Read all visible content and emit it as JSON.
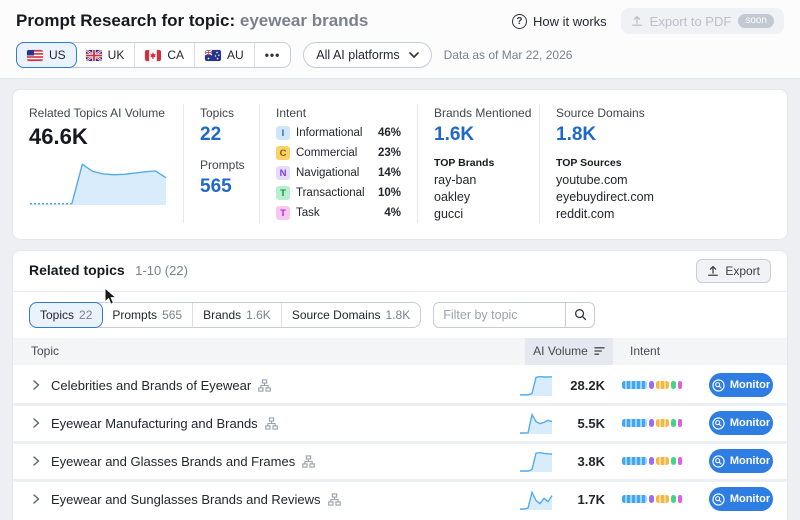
{
  "colors": {
    "accent_blue": "#1f68c9",
    "monitor_blue": "#2e7de2",
    "spark_line": "#55aced",
    "spark_fill": "#d9ecfb",
    "selected_tab_border": "#3179d8",
    "selected_tab_bg": "#eaf3fd",
    "intent_bg": {
      "informational": "#cfe6fb",
      "commercial": "#fbd266",
      "navigational": "#e6dcfa",
      "transactional": "#b8efd0",
      "task": "#f7c8f0"
    },
    "intent_fg": {
      "informational": "#2b6cb8",
      "commercial": "#8a5b09",
      "navigational": "#7c3aed",
      "transactional": "#15923f",
      "task": "#c026d3"
    },
    "bar_segments": {
      "blue": "#41a6f5",
      "purple": "#9b6bf2",
      "amber": "#f5b73e",
      "green": "#3fd68a",
      "magenta": "#e05ce0"
    }
  },
  "header": {
    "title_prefix": "Prompt Research for topic: ",
    "title_topic": "eyewear brands",
    "how_it_works_label": "How it works",
    "export_pdf_label": "Export to PDF",
    "soon_badge": "soon",
    "countries": [
      {
        "code": "US",
        "selected": true
      },
      {
        "code": "UK",
        "selected": false
      },
      {
        "code": "CA",
        "selected": false
      },
      {
        "code": "AU",
        "selected": false
      }
    ],
    "more_label": "•••",
    "platform_selector_label": "All AI platforms",
    "data_as_of": "Data as of Mar 22, 2026"
  },
  "overview": {
    "ai_volume_label": "Related Topics AI Volume",
    "ai_volume_value": "46.6K",
    "trend": [
      0.03,
      0.03,
      0.03,
      0.03,
      0.03,
      0.97,
      0.8,
      0.74,
      0.72,
      0.73,
      0.76,
      0.79,
      0.81,
      0.65
    ],
    "topics_label": "Topics",
    "topics_value": "22",
    "prompts_label": "Prompts",
    "prompts_value": "565",
    "intent_label": "Intent",
    "intents": [
      {
        "letter": "I",
        "name": "Informational",
        "pct": "46%"
      },
      {
        "letter": "C",
        "name": "Commercial",
        "pct": "23%"
      },
      {
        "letter": "N",
        "name": "Navigational",
        "pct": "14%"
      },
      {
        "letter": "T",
        "name": "Transactional",
        "pct": "10%"
      },
      {
        "letter": "T",
        "name": "Task",
        "pct": "4%"
      }
    ],
    "brands_label": "Brands Mentioned",
    "brands_value": "1.6K",
    "top_brands_label": "TOP Brands",
    "top_brands": {
      "0": "ray-ban",
      "1": "oakley",
      "2": "gucci"
    },
    "sources_label": "Source Domains",
    "sources_value": "1.8K",
    "top_sources_label": "TOP Sources",
    "top_sources": {
      "0": "youtube.com",
      "1": "eyebuydirect.com",
      "2": "reddit.com"
    }
  },
  "related": {
    "title": "Related topics",
    "range": "1-10 (22)",
    "export_label": "Export",
    "tabs": [
      {
        "label": "Topics",
        "value": "22",
        "active": true
      },
      {
        "label": "Prompts",
        "value": "565",
        "active": false
      },
      {
        "label": "Brands",
        "value": "1.6K",
        "active": false
      },
      {
        "label": "Source Domains",
        "value": "1.8K",
        "active": false
      }
    ],
    "filter_placeholder": "Filter by topic",
    "columns": {
      "topic": "Topic",
      "ai_volume": "AI Volume",
      "intent": "Intent"
    },
    "monitor_label": "Monitor",
    "rows": [
      {
        "topic": "Celebrities and Brands of Eyewear",
        "ai_volume": "28.2K",
        "trend": [
          0.06,
          0.06,
          0.06,
          0.12,
          0.93,
          0.97,
          0.95,
          0.95,
          0.96
        ]
      },
      {
        "topic": "Eyewear Manufacturing and Brands",
        "ai_volume": "5.5K",
        "trend": [
          0.05,
          0.05,
          0.06,
          0.97,
          0.62,
          0.52,
          0.58,
          0.68,
          0.62
        ]
      },
      {
        "topic": "Eyewear and Glasses Brands and Frames",
        "ai_volume": "3.8K",
        "trend": [
          0.05,
          0.05,
          0.05,
          0.12,
          0.94,
          0.97,
          0.93,
          0.91,
          0.9
        ]
      },
      {
        "topic": "Eyewear and Sunglasses Brands and Reviews",
        "ai_volume": "1.7K",
        "trend": [
          0.05,
          0.05,
          0.1,
          0.88,
          0.48,
          0.32,
          0.58,
          0.42,
          0.72
        ]
      }
    ]
  }
}
